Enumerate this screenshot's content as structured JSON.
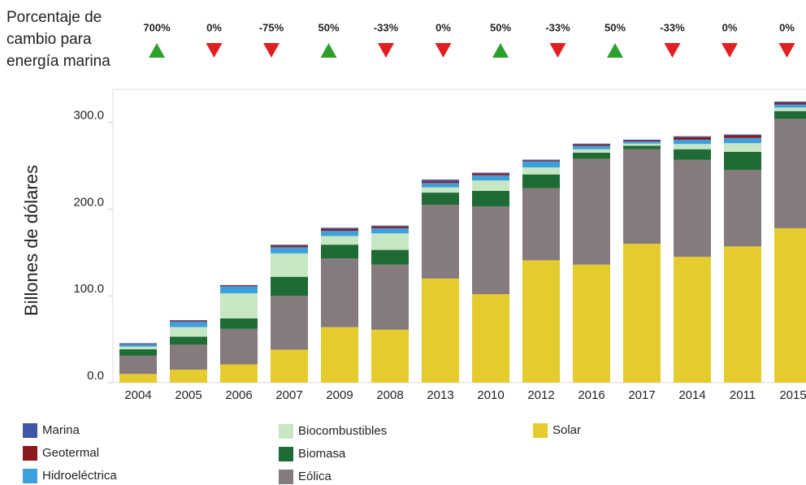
{
  "chart_data": {
    "type": "stacked_bar",
    "y_label": "Billones de dólares",
    "annotations": {
      "title_lines": [
        "Porcentaje de",
        "cambio para",
        "energía marina"
      ],
      "values": [
        700,
        0,
        -75,
        50,
        -33,
        0,
        50,
        -33,
        50,
        -33,
        0,
        0
      ],
      "value_labels": [
        "700%",
        "0%",
        "-75%",
        "50%",
        "-33%",
        "0%",
        "50%",
        "-33%",
        "50%",
        "-33%",
        "0%",
        "0%"
      ],
      "up_color": "#2ca02c",
      "down_color": "#e02020"
    },
    "categories": [
      "2004",
      "2005",
      "2006",
      "2007",
      "2009",
      "2008",
      "2013",
      "2010",
      "2012",
      "2016",
      "2017",
      "2014",
      "2011",
      "2015"
    ],
    "series": [
      {
        "name": "Solar",
        "color": "#e5cc2e",
        "values": [
          10,
          15,
          21,
          38,
          64,
          61,
          120,
          102,
          141,
          136,
          160,
          145,
          157,
          178
        ]
      },
      {
        "name": "Eólica",
        "color": "#857a7c",
        "values": [
          21,
          29,
          41,
          62,
          79,
          75,
          85,
          101,
          83,
          122,
          109,
          112,
          88,
          126
        ]
      },
      {
        "name": "Biomasa",
        "color": "#1e6b35",
        "values": [
          7.5,
          9,
          12,
          22,
          16,
          17,
          14,
          18,
          16,
          7,
          4,
          12,
          21,
          9
        ]
      },
      {
        "name": "Biocombustibles",
        "color": "#c7e6c4",
        "values": [
          3,
          11,
          29,
          27,
          10,
          19,
          6,
          12,
          8,
          4,
          2.5,
          6,
          10,
          4
        ]
      },
      {
        "name": "Hidroeléctrica",
        "color": "#3ca0dc",
        "values": [
          3,
          6,
          8,
          7,
          6,
          6,
          5,
          6,
          7,
          4,
          2.5,
          5,
          6,
          3.5
        ]
      },
      {
        "name": "Geotermal",
        "color": "#8b1a1a",
        "values": [
          0.5,
          1,
          1,
          2,
          2,
          2,
          2,
          2,
          1,
          1.5,
          1,
          3,
          3,
          2
        ]
      },
      {
        "name": "Marina",
        "color": "#4055a8",
        "values": [
          0.5,
          1,
          0.5,
          1,
          1.5,
          1,
          2,
          1,
          1,
          1,
          1,
          1,
          1,
          1.5
        ]
      }
    ],
    "ylim": [
      0,
      338
    ],
    "yticks": [
      {
        "value": 0,
        "label": "0.0"
      },
      {
        "value": 100,
        "label": "100.0"
      },
      {
        "value": 200,
        "label": "200.0"
      },
      {
        "value": 300,
        "label": "300.0"
      }
    ],
    "grid": false
  }
}
